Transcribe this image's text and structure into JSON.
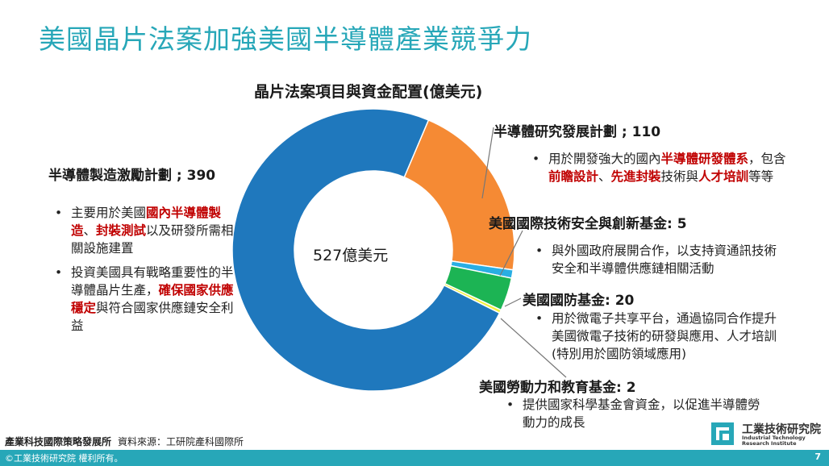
{
  "page_title": "美國晶片法案加強美國半導體產業競爭力",
  "chart_data": {
    "type": "pie",
    "donut": true,
    "title": "晶片法案項目與資金配置(億美元)",
    "center_label": "527億美元",
    "legend": "none",
    "slices": [
      {
        "label": "半導體研究發展計劃",
        "value": 110,
        "color": "#f58a34"
      },
      {
        "label": "美國國際技術安全與創新基金",
        "value": 5,
        "color": "#29aee3"
      },
      {
        "label": "美國國防基金",
        "value": 20,
        "color": "#1cb454"
      },
      {
        "label": "美國勞動力和教育基金",
        "value": 2,
        "color": "#f3ef3c"
      },
      {
        "label": "半導體製造激勵計劃",
        "value": 390,
        "color": "#1f78bd"
      }
    ]
  },
  "labels": {
    "manufacturing": "半導體製造激勵計劃 ; 390",
    "rnd": "半導體研究發展計劃 ; 110",
    "security": "美國國際技術安全與創新基金: 5",
    "defense": "美國國防基金: 20",
    "workforce": "美國勞動力和教育基金: 2"
  },
  "descriptions": {
    "manufacturing_1": {
      "a": "主要用於美國",
      "r1": "國內半導體製造",
      "b": "、",
      "r2": "封裝測試",
      "c": "以及研發所需相關設施建置"
    },
    "manufacturing_2": {
      "a": "投資美國具有戰略重要性的半導體晶片生產，",
      "r1": "確保國家供應穩定",
      "b": "與符合國家供應鏈安全利益"
    },
    "rnd": {
      "a": "用於開發強大的國內",
      "r1": "半導體研發體系",
      "b": "，包含",
      "r2": "前瞻設計",
      "c": "、",
      "r3": "先進封裝",
      "d": "技術與",
      "r4": "人才培訓",
      "e": "等等"
    },
    "security": "與外國政府展開合作，以支持資通訊技術安全和半導體供應鏈相關活動",
    "defense": "用於微電子共享平台，通過協同合作提升美國微電子技術的研發與應用、人才培訓 (特別用於國防領域應用)",
    "workforce": "提供國家科學基金會資金，以促進半導體勞動力的成長"
  },
  "bullet": "•",
  "footer": {
    "org": "產業科技國際策略發展所",
    "source": "資料來源：工研院產科國際所",
    "copyright": "©工業技術研究院 權利所有。",
    "page_number": "7",
    "logo_zh": "工業技術研究院",
    "logo_en_1": "Industrial Technology",
    "logo_en_2": "Research Institute"
  }
}
